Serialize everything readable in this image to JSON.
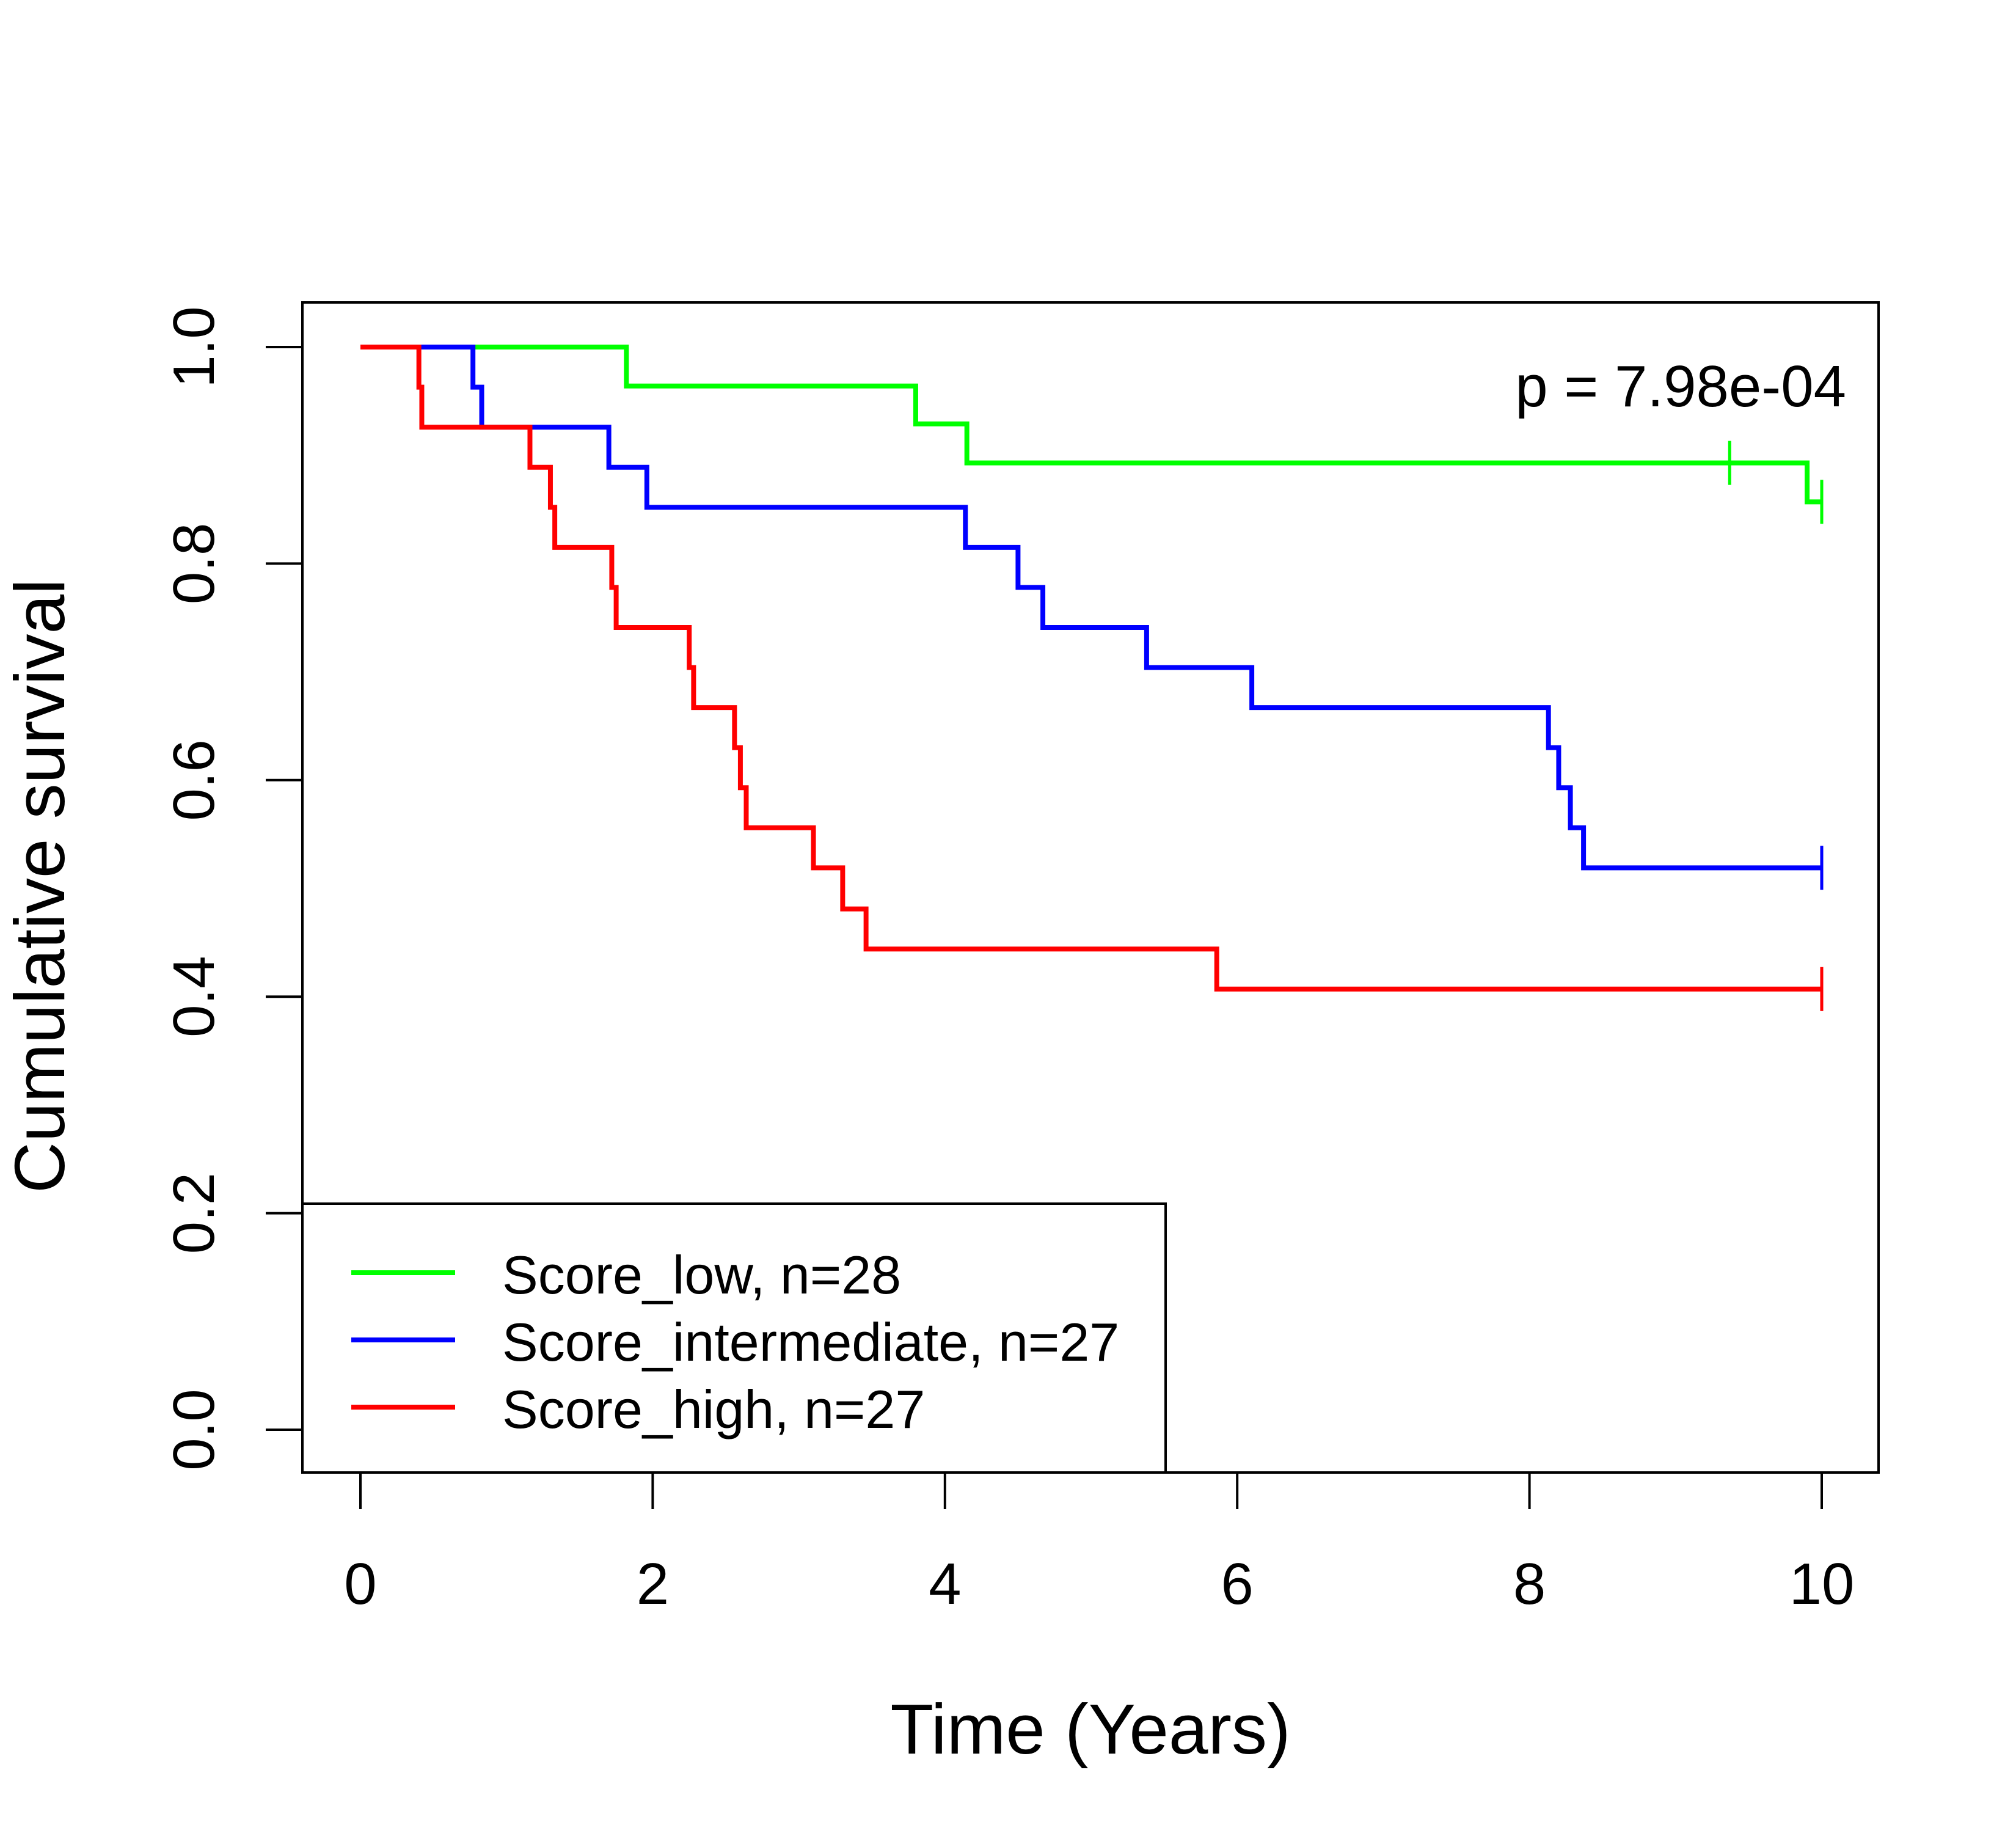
{
  "chart_data": {
    "type": "line",
    "subtype": "kaplan-meier-step",
    "title": "",
    "xlabel": "Time (Years)",
    "ylabel": "Cumulative survival",
    "xlim": [
      0,
      10
    ],
    "ylim": [
      0,
      1
    ],
    "x_ticks": [
      0,
      2,
      4,
      6,
      8,
      10
    ],
    "y_ticks": [
      0.0,
      0.2,
      0.4,
      0.6,
      0.8,
      1.0
    ],
    "x_tick_labels": [
      "0",
      "2",
      "4",
      "6",
      "8",
      "10"
    ],
    "y_tick_labels": [
      "0.0",
      "0.2",
      "0.4",
      "0.6",
      "0.8",
      "1.0"
    ],
    "annotation": "p = 7.98e-04",
    "grid": false,
    "legend_position": "bottom-left",
    "series": [
      {
        "name": "Score_low, n=28",
        "color": "#00ff00",
        "x": [
          0,
          1.82,
          3.8,
          4.15,
          9.9,
          10
        ],
        "y": [
          1.0,
          0.964,
          0.929,
          0.893,
          0.857,
          0.857
        ],
        "censored": [
          {
            "x": 9.37,
            "y": 0.893
          },
          {
            "x": 10.0,
            "y": 0.857
          }
        ]
      },
      {
        "name": "Score_intermediate, n=27",
        "color": "#0000ff",
        "x": [
          0,
          0.77,
          0.83,
          1.7,
          1.96,
          4.14,
          4.5,
          4.67,
          5.38,
          6.1,
          8.13,
          8.2,
          8.28,
          8.37,
          10
        ],
        "y": [
          1.0,
          0.963,
          0.926,
          0.889,
          0.852,
          0.815,
          0.778,
          0.741,
          0.704,
          0.667,
          0.63,
          0.593,
          0.556,
          0.519,
          0.519
        ],
        "censored": [
          {
            "x": 10.0,
            "y": 0.519
          }
        ]
      },
      {
        "name": "Score_high, n=27",
        "color": "#ff0000",
        "x": [
          0,
          0.4,
          0.42,
          1.16,
          1.3,
          1.33,
          1.72,
          1.75,
          2.25,
          2.28,
          2.56,
          2.6,
          2.64,
          3.1,
          3.3,
          3.46,
          5.86,
          10
        ],
        "y": [
          1.0,
          0.963,
          0.926,
          0.889,
          0.852,
          0.815,
          0.778,
          0.741,
          0.704,
          0.667,
          0.63,
          0.593,
          0.556,
          0.519,
          0.481,
          0.444,
          0.407,
          0.407
        ],
        "censored": [
          {
            "x": 10.0,
            "y": 0.407
          }
        ]
      }
    ]
  }
}
